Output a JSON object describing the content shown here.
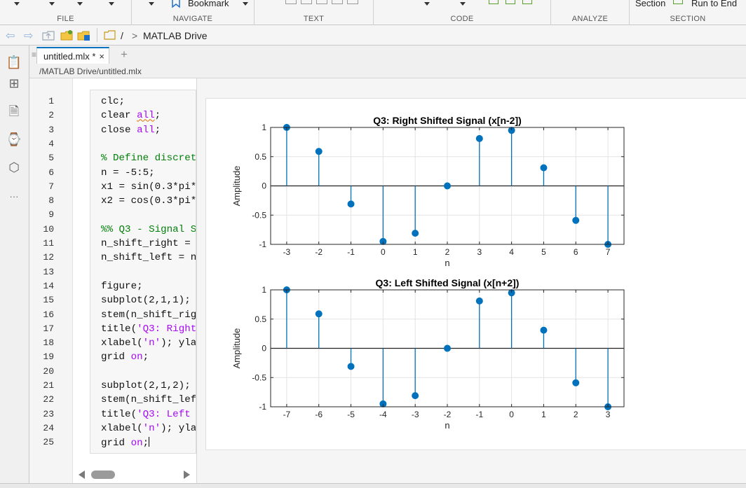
{
  "ribbon": {
    "sections": [
      {
        "id": "file",
        "label": "FILE"
      },
      {
        "id": "navigate",
        "label": "NAVIGATE"
      },
      {
        "id": "text",
        "label": "TEXT"
      },
      {
        "id": "code",
        "label": "CODE"
      },
      {
        "id": "analyze",
        "label": "ANALYZE"
      },
      {
        "id": "section",
        "label": "SECTION"
      }
    ],
    "bookmark_label": "Bookmark",
    "section_label": "Section",
    "run_to_end_label": "Run to End"
  },
  "address": {
    "root": "/",
    "separator": ">",
    "folder": "MATLAB Drive"
  },
  "editor": {
    "tab_label": "untitled.mlx *",
    "tab_close": "×",
    "new_tab": "+",
    "file_path": "/MATLAB Drive/untitled.mlx",
    "line_numbers": [
      "1",
      "2",
      "3",
      "4",
      "5",
      "6",
      "7",
      "8",
      "9",
      "10",
      "11",
      "12",
      "13",
      "14",
      "15",
      "16",
      "17",
      "18",
      "19",
      "20",
      "21",
      "22",
      "23",
      "24",
      "25"
    ],
    "lines": [
      [
        {
          "t": "clc;",
          "k": ""
        }
      ],
      [
        {
          "t": "clear ",
          "k": ""
        },
        {
          "t": "all",
          "k": "u"
        },
        {
          "t": ";",
          "k": ""
        }
      ],
      [
        {
          "t": "close ",
          "k": ""
        },
        {
          "t": "all",
          "k": "v"
        },
        {
          "t": ";",
          "k": ""
        }
      ],
      [],
      [
        {
          "t": "% Define discret",
          "k": "c"
        }
      ],
      [
        {
          "t": "n = -5:5;",
          "k": ""
        }
      ],
      [
        {
          "t": "x1 = sin(0.3*pi*",
          "k": ""
        }
      ],
      [
        {
          "t": "x2 = cos(0.3*pi*",
          "k": ""
        }
      ],
      [],
      [
        {
          "t": "%% Q3 - Signal S",
          "k": "c"
        }
      ],
      [
        {
          "t": "n_shift_right = ",
          "k": ""
        }
      ],
      [
        {
          "t": "n_shift_left = n",
          "k": ""
        }
      ],
      [],
      [
        {
          "t": "figure;",
          "k": ""
        }
      ],
      [
        {
          "t": "subplot(2,1,1);",
          "k": ""
        }
      ],
      [
        {
          "t": "stem(n_shift_rig",
          "k": ""
        }
      ],
      [
        {
          "t": "title(",
          "k": ""
        },
        {
          "t": "'Q3: Right",
          "k": "s"
        }
      ],
      [
        {
          "t": "xlabel(",
          "k": ""
        },
        {
          "t": "'n'",
          "k": "s"
        },
        {
          "t": "); yla",
          "k": ""
        }
      ],
      [
        {
          "t": "grid ",
          "k": ""
        },
        {
          "t": "on",
          "k": "v"
        },
        {
          "t": ";",
          "k": ""
        }
      ],
      [],
      [
        {
          "t": "subplot(2,1,2);",
          "k": ""
        }
      ],
      [
        {
          "t": "stem(n_shift_lef",
          "k": ""
        }
      ],
      [
        {
          "t": "title(",
          "k": ""
        },
        {
          "t": "'Q3: Left ",
          "k": "s"
        }
      ],
      [
        {
          "t": "xlabel(",
          "k": ""
        },
        {
          "t": "'n'",
          "k": "s"
        },
        {
          "t": "); yla",
          "k": ""
        }
      ],
      [
        {
          "t": "grid ",
          "k": ""
        },
        {
          "t": "on",
          "k": "v"
        },
        {
          "t": ";",
          "k": "cursor"
        }
      ]
    ]
  },
  "colors": {
    "stem": "#0072bd",
    "accent": "#0072bd",
    "keyword": "#0e00ff",
    "string": "#a709f5",
    "comment": "#028009"
  },
  "chart_data": [
    {
      "type": "stem",
      "title": "Q3: Right Shifted Signal (x[n-2])",
      "xlabel": "n",
      "ylabel": "Amplitude",
      "x": [
        -3,
        -2,
        -1,
        0,
        1,
        2,
        3,
        4,
        5,
        6,
        7
      ],
      "y": [
        1.0,
        0.59,
        -0.31,
        -0.95,
        -0.81,
        0.0,
        0.81,
        0.95,
        0.31,
        -0.59,
        -1.0
      ],
      "xlim": [
        -3.5,
        7.5
      ],
      "ylim": [
        -1,
        1
      ],
      "xticks": [
        "-3",
        "-2",
        "-1",
        "0",
        "1",
        "2",
        "3",
        "4",
        "5",
        "6",
        "7"
      ],
      "yticks": [
        "-1",
        "-0.5",
        "0",
        "0.5",
        "1"
      ],
      "grid": true
    },
    {
      "type": "stem",
      "title": "Q3: Left Shifted Signal (x[n+2])",
      "xlabel": "n",
      "ylabel": "Amplitude",
      "x": [
        -7,
        -6,
        -5,
        -4,
        -3,
        -2,
        -1,
        0,
        1,
        2,
        3
      ],
      "y": [
        1.0,
        0.59,
        -0.31,
        -0.95,
        -0.81,
        0.0,
        0.81,
        0.95,
        0.31,
        -0.59,
        -1.0
      ],
      "xlim": [
        -7.5,
        3.5
      ],
      "ylim": [
        -1,
        1
      ],
      "xticks": [
        "-7",
        "-6",
        "-5",
        "-4",
        "-3",
        "-2",
        "-1",
        "0",
        "1",
        "2",
        "3"
      ],
      "yticks": [
        "-1",
        "-0.5",
        "0",
        "0.5",
        "1"
      ],
      "grid": true
    }
  ]
}
